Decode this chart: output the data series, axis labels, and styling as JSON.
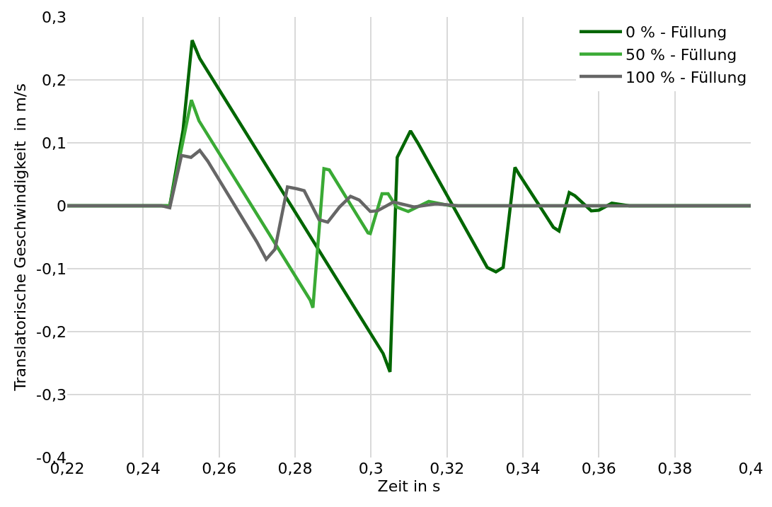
{
  "chart_data": {
    "type": "line",
    "xlabel": "Zeit in s",
    "ylabel": "Translatorische Geschwindigkeit  in m/s",
    "xlim": [
      0.22,
      0.4
    ],
    "ylim": [
      -0.4,
      0.3
    ],
    "xticks": [
      {
        "value": 0.22,
        "label": "0,22"
      },
      {
        "value": 0.24,
        "label": "0,24"
      },
      {
        "value": 0.26,
        "label": "0,26"
      },
      {
        "value": 0.28,
        "label": "0,28"
      },
      {
        "value": 0.3,
        "label": "0,3"
      },
      {
        "value": 0.32,
        "label": "0,32"
      },
      {
        "value": 0.34,
        "label": "0,34"
      },
      {
        "value": 0.36,
        "label": "0,36"
      },
      {
        "value": 0.38,
        "label": "0,38"
      },
      {
        "value": 0.4,
        "label": "0,4"
      }
    ],
    "yticks": [
      {
        "value": -0.4,
        "label": "-0,4"
      },
      {
        "value": -0.3,
        "label": "-0,3"
      },
      {
        "value": -0.2,
        "label": "-0,2"
      },
      {
        "value": -0.1,
        "label": "-0,1"
      },
      0,
      {
        "value": 0.1,
        "label": "0,1"
      },
      {
        "value": 0.2,
        "label": "0,2"
      },
      {
        "value": 0.3,
        "label": "0,3"
      }
    ],
    "grid": true,
    "legend": "top right",
    "marker": "none",
    "line_style": "solid",
    "series": [
      {
        "name": "0 % - Füllung",
        "color": "#006600",
        "x": [
          0.22,
          0.247,
          0.2505,
          0.2529,
          0.2549,
          0.3032,
          0.305,
          0.3069,
          0.3104,
          0.3123,
          0.3306,
          0.3329,
          0.3348,
          0.3379,
          0.339,
          0.348,
          0.3495,
          0.3522,
          0.3537,
          0.358,
          0.36,
          0.3634,
          0.368,
          0.4
        ],
        "values": [
          0,
          0,
          0.12,
          0.263,
          0.234,
          -0.235,
          -0.264,
          0.077,
          0.119,
          0.1,
          -0.098,
          -0.105,
          -0.098,
          0.061,
          0.05,
          -0.034,
          -0.04,
          0.021,
          0.016,
          -0.008,
          -0.007,
          0.004,
          0,
          0
        ]
      },
      {
        "name": "50 % - Füllung",
        "color": "#3aaa35",
        "x": [
          0.22,
          0.247,
          0.2527,
          0.2547,
          0.284,
          0.2847,
          0.2876,
          0.289,
          0.2992,
          0.2998,
          0.3029,
          0.3045,
          0.3067,
          0.3098,
          0.3152,
          0.321,
          0.4
        ],
        "values": [
          0,
          0,
          0.168,
          0.135,
          -0.15,
          -0.162,
          0.059,
          0.057,
          -0.043,
          -0.044,
          0.019,
          0.019,
          -0.002,
          -0.009,
          0.007,
          0,
          0
        ]
      },
      {
        "name": "100 % - Füllung",
        "color": "#666666",
        "x": [
          0.22,
          0.2449,
          0.247,
          0.2501,
          0.2526,
          0.2549,
          0.257,
          0.2699,
          0.2724,
          0.2747,
          0.278,
          0.2805,
          0.2824,
          0.2863,
          0.2886,
          0.2917,
          0.2946,
          0.2969,
          0.2998,
          0.3017,
          0.3059,
          0.3113,
          0.3171,
          0.323,
          0.4
        ],
        "values": [
          0,
          0,
          -0.003,
          0.08,
          0.077,
          0.088,
          0.071,
          -0.057,
          -0.085,
          -0.069,
          0.03,
          0.027,
          0.024,
          -0.022,
          -0.026,
          -0.002,
          0.015,
          0.009,
          -0.009,
          -0.008,
          0.006,
          -0.002,
          0.003,
          0,
          0
        ]
      }
    ]
  }
}
